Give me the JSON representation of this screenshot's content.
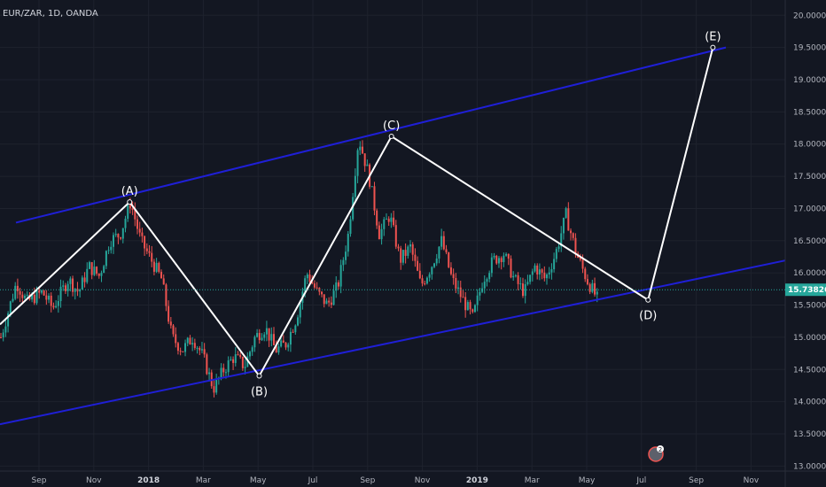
{
  "header": {
    "symbol": "EUR/ZAR, 1D, OANDA"
  },
  "chart_data": {
    "type": "candlestick",
    "y_range": [
      12.95,
      20.1
    ],
    "y_ticks": [
      "13.00000",
      "13.50000",
      "14.00000",
      "14.50000",
      "15.00000",
      "15.50000",
      "16.00000",
      "16.50000",
      "17.00000",
      "17.50000",
      "18.00000",
      "18.50000",
      "19.00000",
      "19.50000",
      "20.00000"
    ],
    "x_labels": [
      {
        "label": "Sep",
        "bold": false
      },
      {
        "label": "Nov",
        "bold": false
      },
      {
        "label": "2018",
        "bold": true
      },
      {
        "label": "Mar",
        "bold": false
      },
      {
        "label": "May",
        "bold": false
      },
      {
        "label": "Jul",
        "bold": false
      },
      {
        "label": "Sep",
        "bold": false
      },
      {
        "label": "Nov",
        "bold": false
      },
      {
        "label": "2019",
        "bold": true
      },
      {
        "label": "Mar",
        "bold": false
      },
      {
        "label": "May",
        "bold": false
      },
      {
        "label": "Jul",
        "bold": false
      },
      {
        "label": "Sep",
        "bold": false
      },
      {
        "label": "Nov",
        "bold": false
      }
    ],
    "last_price": "15.73826",
    "price_path": [
      [
        0,
        15.0
      ],
      [
        0.03,
        15.85
      ],
      [
        0.05,
        15.55
      ],
      [
        0.08,
        15.7
      ],
      [
        0.1,
        15.45
      ],
      [
        0.13,
        15.9
      ],
      [
        0.15,
        15.7
      ],
      [
        0.17,
        16.1
      ],
      [
        0.19,
        15.95
      ],
      [
        0.21,
        16.5
      ],
      [
        0.23,
        16.6
      ],
      [
        0.25,
        17.1
      ],
      [
        0.27,
        16.5
      ],
      [
        0.29,
        16.2
      ],
      [
        0.31,
        15.9
      ],
      [
        0.33,
        15.0
      ],
      [
        0.35,
        14.8
      ],
      [
        0.37,
        15.0
      ],
      [
        0.39,
        14.7
      ],
      [
        0.41,
        14.2
      ],
      [
        0.43,
        14.5
      ],
      [
        0.45,
        14.7
      ],
      [
        0.47,
        14.55
      ],
      [
        0.49,
        15.0
      ],
      [
        0.51,
        15.15
      ],
      [
        0.53,
        14.8
      ],
      [
        0.55,
        14.9
      ],
      [
        0.57,
        15.3
      ],
      [
        0.59,
        16.0
      ],
      [
        0.61,
        15.7
      ],
      [
        0.63,
        15.5
      ],
      [
        0.65,
        15.8
      ],
      [
        0.67,
        16.6
      ],
      [
        0.69,
        18.1
      ],
      [
        0.71,
        17.5
      ],
      [
        0.73,
        16.6
      ],
      [
        0.75,
        16.9
      ],
      [
        0.77,
        16.2
      ],
      [
        0.79,
        16.4
      ],
      [
        0.81,
        15.8
      ],
      [
        0.83,
        16.1
      ],
      [
        0.85,
        16.5
      ],
      [
        0.87,
        15.9
      ],
      [
        0.89,
        15.6
      ],
      [
        0.91,
        15.3
      ],
      [
        0.93,
        15.9
      ],
      [
        0.95,
        16.2
      ],
      [
        0.97,
        16.3
      ],
      [
        0.99,
        15.9
      ],
      [
        1.01,
        15.7
      ],
      [
        1.03,
        16.1
      ],
      [
        1.05,
        15.9
      ],
      [
        1.07,
        16.3
      ],
      [
        1.09,
        16.9
      ],
      [
        1.11,
        16.3
      ],
      [
        1.13,
        15.9
      ],
      [
        1.15,
        15.6
      ]
    ],
    "channel": {
      "upper": [
        [
          0,
          16.78
        ],
        [
          1.4,
          19.5
        ]
      ],
      "lower": [
        [
          0,
          13.65
        ],
        [
          1.4,
          16.0
        ]
      ]
    },
    "waves": [
      {
        "label": "",
        "x": 0.0,
        "y": 15.2
      },
      {
        "label": "(A)",
        "x": 0.25,
        "y": 17.1
      },
      {
        "label": "(B)",
        "x": 0.5,
        "y": 14.4
      },
      {
        "label": "(C)",
        "x": 0.755,
        "y": 18.12
      },
      {
        "label": "(D)",
        "x": 1.25,
        "y": 15.58
      },
      {
        "label": "(E)",
        "x": 1.375,
        "y": 19.5
      }
    ],
    "badge": {
      "count": "2"
    }
  }
}
